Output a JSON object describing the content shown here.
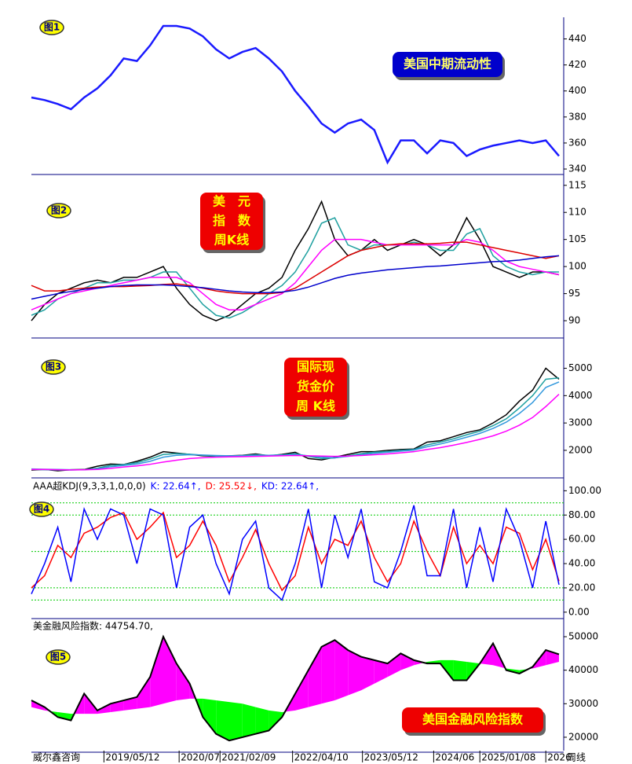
{
  "chart_data": [
    {
      "type": "line",
      "badge": "图1",
      "annotation_lines": [
        "美国中期流动性"
      ],
      "annotation_color": "#0000cc",
      "annotation_text_color": "#ffff66",
      "ylim": [
        337,
        453
      ],
      "yticks": [
        340,
        360,
        380,
        400,
        420,
        440
      ],
      "series": [
        {
          "color": "#1a1aff",
          "values": [
            395,
            393,
            390,
            386,
            395,
            402,
            412,
            425,
            423,
            435,
            450,
            450,
            448,
            442,
            432,
            425,
            430,
            433,
            425,
            415,
            400,
            388,
            375,
            368,
            375,
            378,
            370,
            345,
            362,
            362,
            352,
            362,
            360,
            350,
            355,
            358,
            360,
            362,
            360,
            362,
            350
          ]
        }
      ]
    },
    {
      "type": "line",
      "badge": "图2",
      "annotation_lines": [
        "美　元",
        "指　数",
        "周K线"
      ],
      "annotation_color": "#ee0000",
      "annotation_text_color": "#ffff00",
      "ylim": [
        87.1,
        117
      ],
      "yticks": [
        90,
        95,
        100,
        105,
        110,
        115
      ],
      "series": [
        {
          "color": "#000000",
          "values": [
            90,
            93,
            95,
            96,
            97,
            97.5,
            97,
            98,
            98,
            99,
            100,
            96,
            93,
            91,
            90,
            91,
            93,
            95,
            96,
            98,
            103,
            107,
            112,
            105,
            102,
            103,
            105,
            103,
            104,
            105,
            104,
            102,
            104,
            109,
            105,
            100,
            99,
            98,
            99,
            99,
            98.5
          ]
        },
        {
          "color": "#1fa0a0",
          "values": [
            91,
            92,
            94,
            95,
            96,
            97,
            97,
            97.5,
            97.5,
            98,
            99,
            99,
            96,
            93,
            91,
            90.5,
            91.5,
            93,
            95,
            96.5,
            99,
            103,
            108,
            109,
            104,
            103,
            104,
            104,
            104,
            104.5,
            104,
            103,
            103,
            106,
            107,
            102,
            100,
            99,
            98.5,
            99,
            99
          ]
        },
        {
          "color": "#ff00ff",
          "values": [
            92,
            93,
            94,
            95,
            95.5,
            96,
            96.5,
            97,
            97.5,
            98,
            98,
            98,
            97,
            95,
            93,
            92,
            92,
            93,
            94,
            95,
            97,
            100,
            103,
            105,
            105,
            105,
            104.5,
            104,
            104,
            104,
            104,
            104,
            104,
            105,
            104.5,
            103,
            101,
            100,
            99.5,
            99,
            98.5
          ]
        },
        {
          "color": "#dd0000",
          "values": [
            96.5,
            95.5,
            95.5,
            95.8,
            96,
            96.2,
            96.3,
            96.3,
            96.4,
            96.5,
            96.7,
            96.8,
            96.5,
            96,
            95.5,
            95.2,
            95,
            95,
            95,
            95.2,
            96,
            97.5,
            99,
            100.5,
            102,
            103,
            103.5,
            104,
            104.2,
            104.2,
            104.2,
            104.3,
            104.5,
            104.5,
            104,
            103.5,
            103,
            102.5,
            102,
            101.5,
            102
          ]
        },
        {
          "color": "#0000cc",
          "values": [
            94,
            94.5,
            95,
            95.4,
            95.8,
            96,
            96.3,
            96.5,
            96.6,
            96.6,
            96.6,
            96.5,
            96.3,
            96.1,
            95.8,
            95.5,
            95.3,
            95.2,
            95.2,
            95.3,
            95.6,
            96.2,
            97,
            97.8,
            98.4,
            98.8,
            99.1,
            99.4,
            99.6,
            99.8,
            100,
            100.1,
            100.3,
            100.5,
            100.7,
            100.9,
            101,
            101.2,
            101.5,
            101.8,
            102
          ]
        }
      ]
    },
    {
      "type": "line",
      "badge": "图3",
      "annotation_lines": [
        "国际现",
        "货金价",
        "周 K线"
      ],
      "annotation_color": "#ee0000",
      "annotation_text_color": "#ffff00",
      "ylim": [
        1050,
        6050
      ],
      "yticks": [
        2000,
        3000,
        4000,
        5000
      ],
      "series": [
        {
          "color": "#000000",
          "values": [
            1280,
            1300,
            1250,
            1290,
            1300,
            1420,
            1500,
            1480,
            1600,
            1750,
            1950,
            1900,
            1850,
            1800,
            1780,
            1800,
            1820,
            1870,
            1800,
            1850,
            1930,
            1700,
            1650,
            1750,
            1850,
            1950,
            1950,
            2000,
            2030,
            2050,
            2300,
            2350,
            2500,
            2650,
            2750,
            3000,
            3300,
            3800,
            4200,
            5000,
            4600
          ]
        },
        {
          "color": "#1fa0a0",
          "values": [
            1300,
            1290,
            1280,
            1280,
            1290,
            1350,
            1450,
            1480,
            1550,
            1680,
            1850,
            1880,
            1860,
            1820,
            1790,
            1790,
            1810,
            1840,
            1820,
            1830,
            1880,
            1780,
            1700,
            1720,
            1800,
            1880,
            1930,
            1960,
            2000,
            2030,
            2200,
            2300,
            2420,
            2570,
            2700,
            2900,
            3150,
            3550,
            4000,
            4600,
            4650
          ]
        },
        {
          "color": "#3399dd",
          "values": [
            1320,
            1310,
            1300,
            1290,
            1290,
            1320,
            1400,
            1450,
            1500,
            1600,
            1750,
            1820,
            1840,
            1830,
            1810,
            1800,
            1800,
            1820,
            1820,
            1830,
            1850,
            1800,
            1750,
            1730,
            1780,
            1840,
            1890,
            1930,
            1970,
            2010,
            2130,
            2230,
            2350,
            2480,
            2620,
            2800,
            3030,
            3350,
            3750,
            4300,
            4500
          ]
        },
        {
          "color": "#ff00ff",
          "values": [
            1300,
            1300,
            1290,
            1285,
            1290,
            1300,
            1340,
            1390,
            1430,
            1490,
            1570,
            1640,
            1700,
            1730,
            1750,
            1760,
            1770,
            1780,
            1790,
            1800,
            1810,
            1800,
            1790,
            1780,
            1790,
            1810,
            1840,
            1870,
            1910,
            1950,
            2030,
            2100,
            2190,
            2290,
            2400,
            2530,
            2700,
            2920,
            3200,
            3600,
            4050
          ]
        }
      ]
    },
    {
      "type": "line",
      "badge": "图4",
      "header": [
        {
          "text": "AAA超KDJ(9,3,3,1,0,0,0)",
          "color": "#000000"
        },
        {
          "text": "K: 22.64↑,",
          "color": "#0000ff"
        },
        {
          "text": "D: 25.52↓,",
          "color": "#ff0000"
        },
        {
          "text": "KD: 22.64↑,",
          "color": "#0000ff"
        }
      ],
      "ylim": [
        -4,
        108
      ],
      "hlines": [
        10,
        20,
        50,
        80,
        90
      ],
      "hline_color": "#00cc00",
      "yticks": [
        {
          "value": 0,
          "label": "0.00"
        },
        {
          "value": 20,
          "label": "20.00"
        },
        {
          "value": 40,
          "label": "40.00"
        },
        {
          "value": 60,
          "label": "60.00"
        },
        {
          "value": 80,
          "label": "80.00"
        },
        {
          "value": 100,
          "label": "100.00"
        }
      ],
      "series": [
        {
          "color": "#ff0000",
          "values": [
            20,
            30,
            55,
            45,
            65,
            70,
            78,
            82,
            60,
            70,
            82,
            45,
            55,
            75,
            55,
            25,
            45,
            68,
            40,
            18,
            30,
            70,
            40,
            60,
            55,
            75,
            45,
            25,
            40,
            75,
            50,
            30,
            70,
            40,
            55,
            40,
            70,
            65,
            35,
            60,
            25.52
          ]
        },
        {
          "color": "#0000ff",
          "values": [
            15,
            40,
            70,
            25,
            85,
            60,
            85,
            80,
            40,
            85,
            80,
            20,
            70,
            80,
            40,
            15,
            60,
            75,
            20,
            10,
            40,
            85,
            20,
            80,
            45,
            85,
            25,
            20,
            50,
            88,
            30,
            30,
            85,
            20,
            70,
            25,
            85,
            60,
            20,
            75,
            22.64
          ]
        }
      ]
    },
    {
      "type": "area",
      "badge": "图5",
      "annotation_lines": [
        "美国金融风险指数"
      ],
      "annotation_color": "#ee0000",
      "annotation_text_color": "#ffff00",
      "header": [
        {
          "text": "美金融风险指数: 44754.70,",
          "color": "#000000"
        }
      ],
      "fill_above": "#ff00ff",
      "fill_below": "#00ff00",
      "ylim": [
        16000,
        54700
      ],
      "yticks": [
        20000,
        30000,
        40000,
        50000
      ],
      "xlim": [
        0,
        40
      ],
      "xticks": [
        {
          "value": 5.5,
          "label": "2019/05/12"
        },
        {
          "value": 11.2,
          "label": "2020/07"
        },
        {
          "value": 14.3,
          "label": "2021/02/09"
        },
        {
          "value": 19.8,
          "label": "2022/04/10"
        },
        {
          "value": 25.1,
          "label": "2023/05/12"
        },
        {
          "value": 30.5,
          "label": "2024/06"
        },
        {
          "value": 34.0,
          "label": "2025/01/08"
        },
        {
          "value": 39.0,
          "label": "2026"
        }
      ],
      "source": "威尔鑫咨询",
      "x_label": "周线",
      "series": [
        {
          "color": "#000000",
          "values": [
            31000,
            29000,
            26000,
            25000,
            33000,
            28000,
            30000,
            31000,
            32000,
            38000,
            50000,
            42000,
            36000,
            26000,
            21000,
            19000,
            20000,
            21000,
            22000,
            26000,
            33000,
            40000,
            47000,
            49000,
            46000,
            44000,
            43000,
            42000,
            45000,
            43000,
            42000,
            42000,
            37000,
            37000,
            42000,
            48000,
            40000,
            39000,
            41000,
            46000,
            44754.7
          ]
        },
        {
          "values": [
            29000,
            28000,
            27500,
            27000,
            27000,
            27000,
            27500,
            28000,
            28500,
            29000,
            30000,
            31000,
            31500,
            31500,
            31000,
            30500,
            30000,
            29000,
            28000,
            27500,
            28000,
            29000,
            30000,
            31000,
            32500,
            34000,
            36000,
            38000,
            40000,
            41500,
            42500,
            43000,
            43000,
            42500,
            42000,
            41500,
            40500,
            40000,
            40500,
            41500,
            42500
          ]
        }
      ]
    }
  ]
}
